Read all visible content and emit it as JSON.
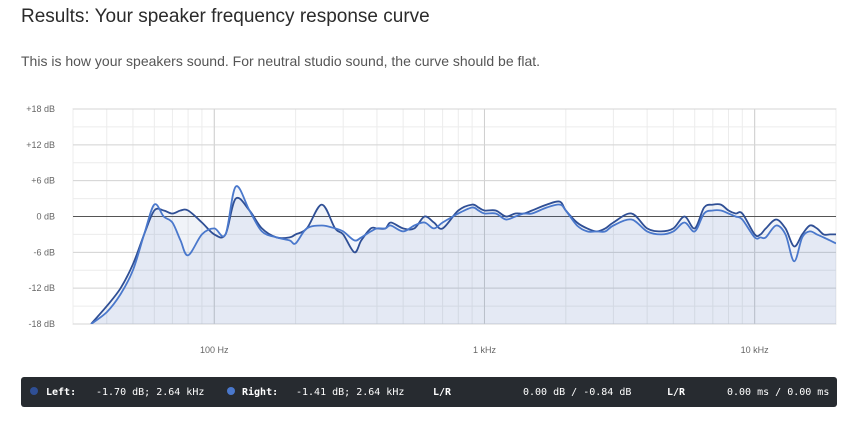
{
  "page": {
    "title": "Results: Your speaker frequency response curve",
    "subtitle": "This is how your speakers sound. For neutral studio sound, the curve should be flat."
  },
  "status": {
    "left_label": "Left:",
    "left_value": "-1.70 dB;  2.64 kHz",
    "right_label": "Right:",
    "right_value": "-1.41 dB;  2.64 kHz",
    "lr_label_1": "L/R",
    "lr_db": "0.00 dB / -0.84 dB",
    "lr_label_2": "L/R",
    "lr_ms": "0.00 ms / 0.00 ms",
    "left_color": "#2f4f95",
    "right_color": "#4a78cc"
  },
  "chart_data": {
    "type": "line",
    "x_scale": "log",
    "xlim": [
      30,
      20000
    ],
    "ylim": [
      -18,
      18
    ],
    "y_ticks": [
      18,
      12,
      6,
      0,
      -6,
      -12,
      -18
    ],
    "y_tick_labels": [
      "+18 dB",
      "+12 dB",
      "+6 dB",
      "0 dB",
      "-6 dB",
      "-12 dB",
      "-18 dB"
    ],
    "x_ticks": [
      100,
      1000,
      10000
    ],
    "x_tick_labels": [
      "100 Hz",
      "1 kHz",
      "10 kHz"
    ],
    "grid": true,
    "series": [
      {
        "name": "Left",
        "color": "#2f4f95",
        "x": [
          35,
          40,
          45,
          50,
          55,
          60,
          65,
          70,
          75,
          80,
          90,
          100,
          110,
          120,
          135,
          150,
          170,
          190,
          200,
          220,
          250,
          280,
          300,
          330,
          350,
          380,
          400,
          430,
          450,
          500,
          550,
          600,
          650,
          700,
          800,
          900,
          950,
          1000,
          1100,
          1200,
          1300,
          1400,
          1500,
          1700,
          1900,
          2000,
          2200,
          2400,
          2600,
          2800,
          3000,
          3500,
          4000,
          4500,
          5000,
          5500,
          6000,
          6500,
          7000,
          7500,
          8000,
          8500,
          9000,
          10000,
          10500,
          11000,
          12000,
          13000,
          14000,
          15000,
          16000,
          17000,
          18000,
          19000,
          20000
        ],
        "y": [
          -18,
          -15,
          -12,
          -8,
          -3,
          1,
          1,
          0.5,
          1,
          1,
          -1,
          -3,
          -3,
          3,
          1,
          -2,
          -3.5,
          -3.5,
          -3,
          -2,
          2,
          -2,
          -3,
          -6,
          -4,
          -2,
          -2,
          -2,
          -1,
          -2,
          -2,
          0,
          -1,
          -2,
          1,
          2,
          1.5,
          1,
          1,
          0,
          0.5,
          0.5,
          1,
          2,
          2.5,
          1,
          -1,
          -2,
          -2.5,
          -2,
          -1,
          0.5,
          -2,
          -2.5,
          -2,
          0,
          -2,
          1.5,
          2,
          2,
          1,
          0.5,
          0.5,
          -3,
          -3,
          -2,
          -0.5,
          -2,
          -5,
          -3,
          -1.5,
          -2,
          -3,
          -3,
          -3
        ]
      },
      {
        "name": "Right",
        "color": "#4a78cc",
        "x": [
          35,
          40,
          45,
          50,
          55,
          60,
          65,
          70,
          75,
          80,
          90,
          100,
          110,
          120,
          135,
          150,
          170,
          190,
          200,
          220,
          250,
          280,
          300,
          330,
          350,
          380,
          400,
          430,
          450,
          500,
          550,
          600,
          650,
          700,
          800,
          900,
          950,
          1000,
          1100,
          1200,
          1300,
          1400,
          1500,
          1700,
          1900,
          2000,
          2200,
          2400,
          2600,
          2800,
          3000,
          3500,
          4000,
          4500,
          5000,
          5500,
          6000,
          6500,
          7000,
          7500,
          8000,
          8500,
          9000,
          10000,
          10500,
          11000,
          12000,
          13000,
          14000,
          15000,
          16000,
          17000,
          18000,
          19000,
          20000
        ],
        "y": [
          -18,
          -16,
          -13,
          -9,
          -3,
          2,
          0,
          -1,
          -4,
          -6.5,
          -3,
          -2,
          -3,
          5,
          1,
          -2.5,
          -3.5,
          -4,
          -4.5,
          -2,
          -1.5,
          -2,
          -2.5,
          -4,
          -3.5,
          -2.5,
          -2,
          -2,
          -1.5,
          -2.5,
          -1.5,
          -1,
          -2,
          -1,
          0.5,
          1.5,
          1,
          0.5,
          0.5,
          -0.5,
          0,
          0.5,
          0.5,
          1.5,
          2,
          1,
          -1.5,
          -2.5,
          -2.5,
          -2.5,
          -1.5,
          -0.5,
          -2.5,
          -3,
          -2.5,
          -1,
          -2.5,
          0.5,
          1,
          1,
          0.5,
          0,
          -0.5,
          -3.5,
          -3.5,
          -3.5,
          -1.5,
          -3,
          -7.5,
          -3.5,
          -2.5,
          -3,
          -3.5,
          -4,
          -4.5
        ]
      }
    ]
  }
}
